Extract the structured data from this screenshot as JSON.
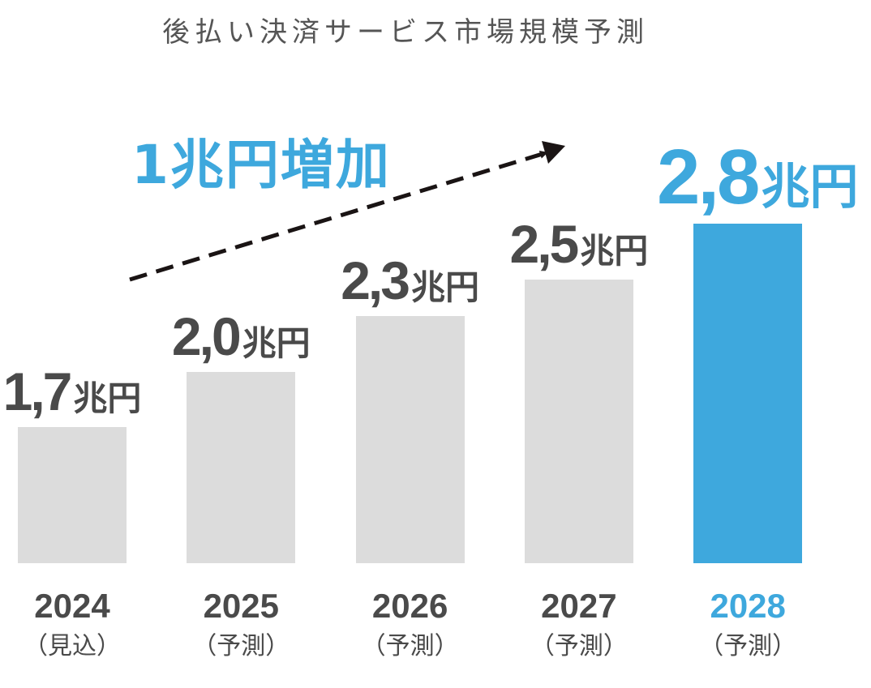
{
  "chart_data": {
    "type": "bar",
    "title": "後払い決済サービス市場規模予測",
    "categories": [
      "2024",
      "2025",
      "2026",
      "2027",
      "2028"
    ],
    "category_notes": [
      "（見込）",
      "（予測）",
      "（予測）",
      "（予測）",
      "（予測）"
    ],
    "values": [
      1.7,
      2.0,
      2.3,
      2.5,
      2.8
    ],
    "value_labels": [
      "1,7",
      "2,0",
      "2,3",
      "2,5",
      "2,8"
    ],
    "unit": "兆円",
    "annotation": "1兆円増加",
    "highlight_index": 4,
    "grid": false,
    "colors": {
      "bar": "#dcdcdc",
      "highlight": "#3ea8dd",
      "text": "#4a4a4a",
      "arrow": "#1a1414"
    }
  }
}
